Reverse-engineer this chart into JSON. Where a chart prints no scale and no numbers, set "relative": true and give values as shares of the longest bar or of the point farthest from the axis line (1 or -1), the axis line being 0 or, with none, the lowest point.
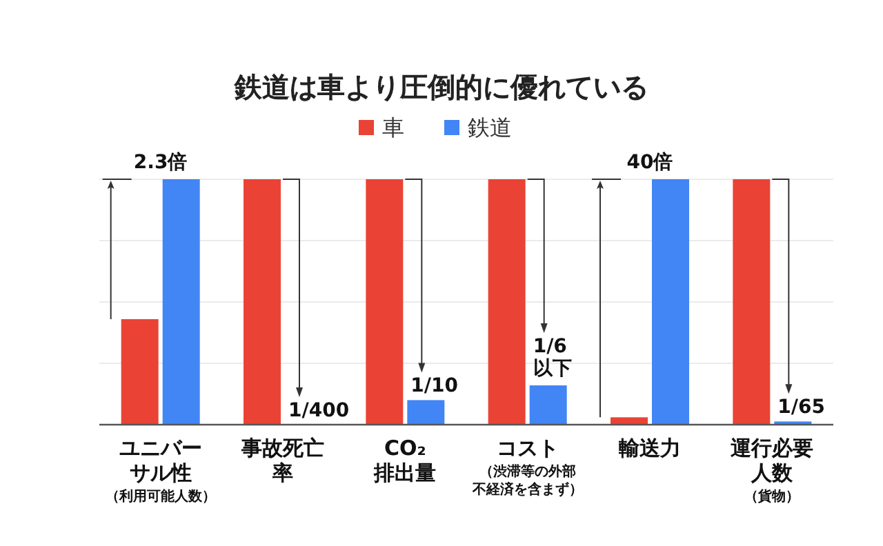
{
  "chart_data": {
    "type": "bar",
    "title": "鉄道は車より圧倒的に優れている",
    "relative": true,
    "grid": "y",
    "legend": "top",
    "categories": [
      "ユニバーサル性（利用可能人数）",
      "事故死亡率",
      "CO₂排出量",
      "コスト（渋滞等の外部不経済を含まず）",
      "輸送力",
      "運行必要人数（貨物）"
    ],
    "series": [
      {
        "name": "車",
        "color": "#ea4335",
        "values": [
          0.43,
          1,
          1,
          1,
          0.03,
          1
        ]
      },
      {
        "name": "鉄道",
        "color": "#4285f4",
        "values": [
          1,
          0,
          0.1,
          0.16,
          1,
          0.013
        ]
      }
    ],
    "annotations": [
      "2.3倍",
      "1/400",
      "1/10",
      "1/6以下",
      "40倍",
      "1/65"
    ]
  }
}
